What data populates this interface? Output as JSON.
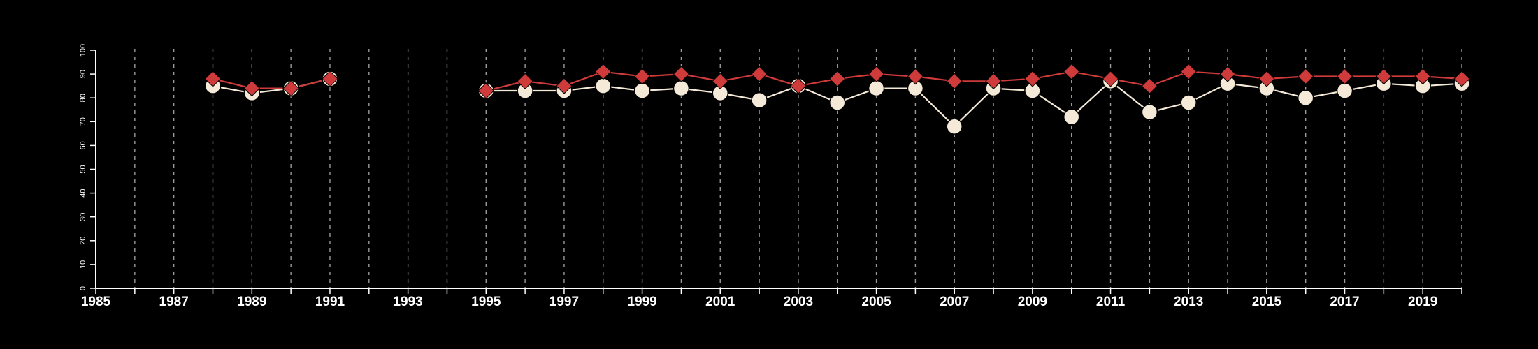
{
  "chart_data": {
    "type": "line",
    "title": "",
    "xlabel": "",
    "ylabel": "",
    "xlim": [
      1985,
      2020
    ],
    "ylim": [
      0,
      100
    ],
    "x_tick_labels": [
      "1985",
      "1987",
      "1989",
      "1991",
      "1993",
      "1995",
      "1997",
      "1999",
      "2001",
      "2003",
      "2005",
      "2007",
      "2009",
      "2011",
      "2013",
      "2015",
      "2017",
      "2019"
    ],
    "y_tick_labels": [
      "0",
      "10",
      "20",
      "30",
      "40",
      "50",
      "60",
      "70",
      "80",
      "90",
      "100"
    ],
    "grid": "vertical dashed lines at every year",
    "legend": "none",
    "colors": {
      "background": "#000000",
      "axis": "#ffffff",
      "grid": "#9a9a9a",
      "series_white": "#f5ead8",
      "series_red": "#cf3a3a"
    },
    "series": [
      {
        "marker": "circle",
        "color": "#f5ead8",
        "points": [
          [
            1988,
            85
          ],
          [
            1989,
            82
          ],
          [
            1990,
            84
          ],
          [
            1991,
            88
          ],
          [
            1995,
            83
          ],
          [
            1996,
            83
          ],
          [
            1997,
            83
          ],
          [
            1998,
            85
          ],
          [
            1999,
            83
          ],
          [
            2000,
            84
          ],
          [
            2001,
            82
          ],
          [
            2002,
            79
          ],
          [
            2003,
            85
          ],
          [
            2004,
            78
          ],
          [
            2005,
            84
          ],
          [
            2006,
            84
          ],
          [
            2007,
            68
          ],
          [
            2008,
            84
          ],
          [
            2009,
            83
          ],
          [
            2010,
            72
          ],
          [
            2011,
            87
          ],
          [
            2012,
            74
          ],
          [
            2013,
            78
          ],
          [
            2014,
            86
          ],
          [
            2015,
            84
          ],
          [
            2016,
            80
          ],
          [
            2017,
            83
          ],
          [
            2018,
            86
          ],
          [
            2019,
            85
          ],
          [
            2020,
            86
          ]
        ]
      },
      {
        "marker": "diamond",
        "color": "#cf3a3a",
        "points": [
          [
            1988,
            88
          ],
          [
            1989,
            84
          ],
          [
            1990,
            84
          ],
          [
            1991,
            88
          ],
          [
            1995,
            83
          ],
          [
            1996,
            87
          ],
          [
            1997,
            85
          ],
          [
            1998,
            91
          ],
          [
            1999,
            89
          ],
          [
            2000,
            90
          ],
          [
            2001,
            87
          ],
          [
            2002,
            90
          ],
          [
            2003,
            85
          ],
          [
            2004,
            88
          ],
          [
            2005,
            90
          ],
          [
            2006,
            89
          ],
          [
            2007,
            87
          ],
          [
            2008,
            87
          ],
          [
            2009,
            88
          ],
          [
            2010,
            91
          ],
          [
            2011,
            88
          ],
          [
            2012,
            85
          ],
          [
            2013,
            91
          ],
          [
            2014,
            90
          ],
          [
            2015,
            88
          ],
          [
            2016,
            89
          ],
          [
            2017,
            89
          ],
          [
            2018,
            89
          ],
          [
            2019,
            89
          ],
          [
            2020,
            88
          ]
        ]
      }
    ]
  }
}
